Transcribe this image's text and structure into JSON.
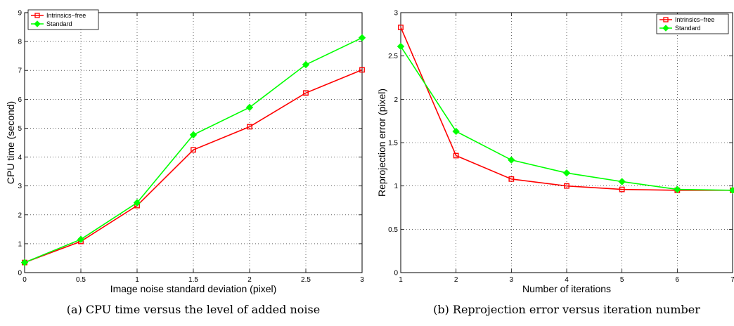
{
  "chart_data": [
    {
      "type": "line",
      "x": [
        0,
        0.5,
        1,
        1.5,
        2,
        2.5,
        3
      ],
      "xlim": [
        0,
        3
      ],
      "ylim": [
        0,
        9
      ],
      "xticks": [
        "0",
        "0.5",
        "1",
        "1.5",
        "2",
        "2.5",
        "3"
      ],
      "yticks": [
        "0",
        "1",
        "2",
        "3",
        "4",
        "5",
        "6",
        "7",
        "8",
        "9"
      ],
      "xlabel": "Image noise standard deviation (pixel)",
      "ylabel": "CPU time (second)",
      "caption": "(a) CPU time versus the level of added noise",
      "grid": true,
      "legend_position": "top-left",
      "series": [
        {
          "name": "Intrinsics−free",
          "color": "#ff0000",
          "marker": "square",
          "values": [
            0.35,
            1.08,
            2.32,
            4.25,
            5.05,
            6.22,
            7.02
          ]
        },
        {
          "name": "Standard",
          "color": "#00ff00",
          "marker": "diamond",
          "values": [
            0.35,
            1.15,
            2.42,
            4.77,
            5.72,
            7.2,
            8.13
          ]
        }
      ]
    },
    {
      "type": "line",
      "x": [
        1,
        2,
        3,
        4,
        5,
        6,
        7
      ],
      "xlim": [
        1,
        7
      ],
      "ylim": [
        0,
        3
      ],
      "xticks": [
        "1",
        "2",
        "3",
        "4",
        "5",
        "6",
        "7"
      ],
      "yticks": [
        "0",
        "0.5",
        "1",
        "1.5",
        "2",
        "2.5",
        "3"
      ],
      "xlabel": "Number of iterations",
      "ylabel": "Reprojection error (pixel)",
      "caption": "(b) Reprojection error versus iteration number",
      "grid": true,
      "legend_position": "top-right",
      "series": [
        {
          "name": "Intrinsics−free",
          "color": "#ff0000",
          "marker": "square",
          "values": [
            2.83,
            1.35,
            1.08,
            1.0,
            0.96,
            0.95,
            0.95
          ]
        },
        {
          "name": "Standard",
          "color": "#00ff00",
          "marker": "diamond",
          "values": [
            2.61,
            1.63,
            1.3,
            1.15,
            1.05,
            0.96,
            0.95
          ]
        }
      ]
    }
  ]
}
